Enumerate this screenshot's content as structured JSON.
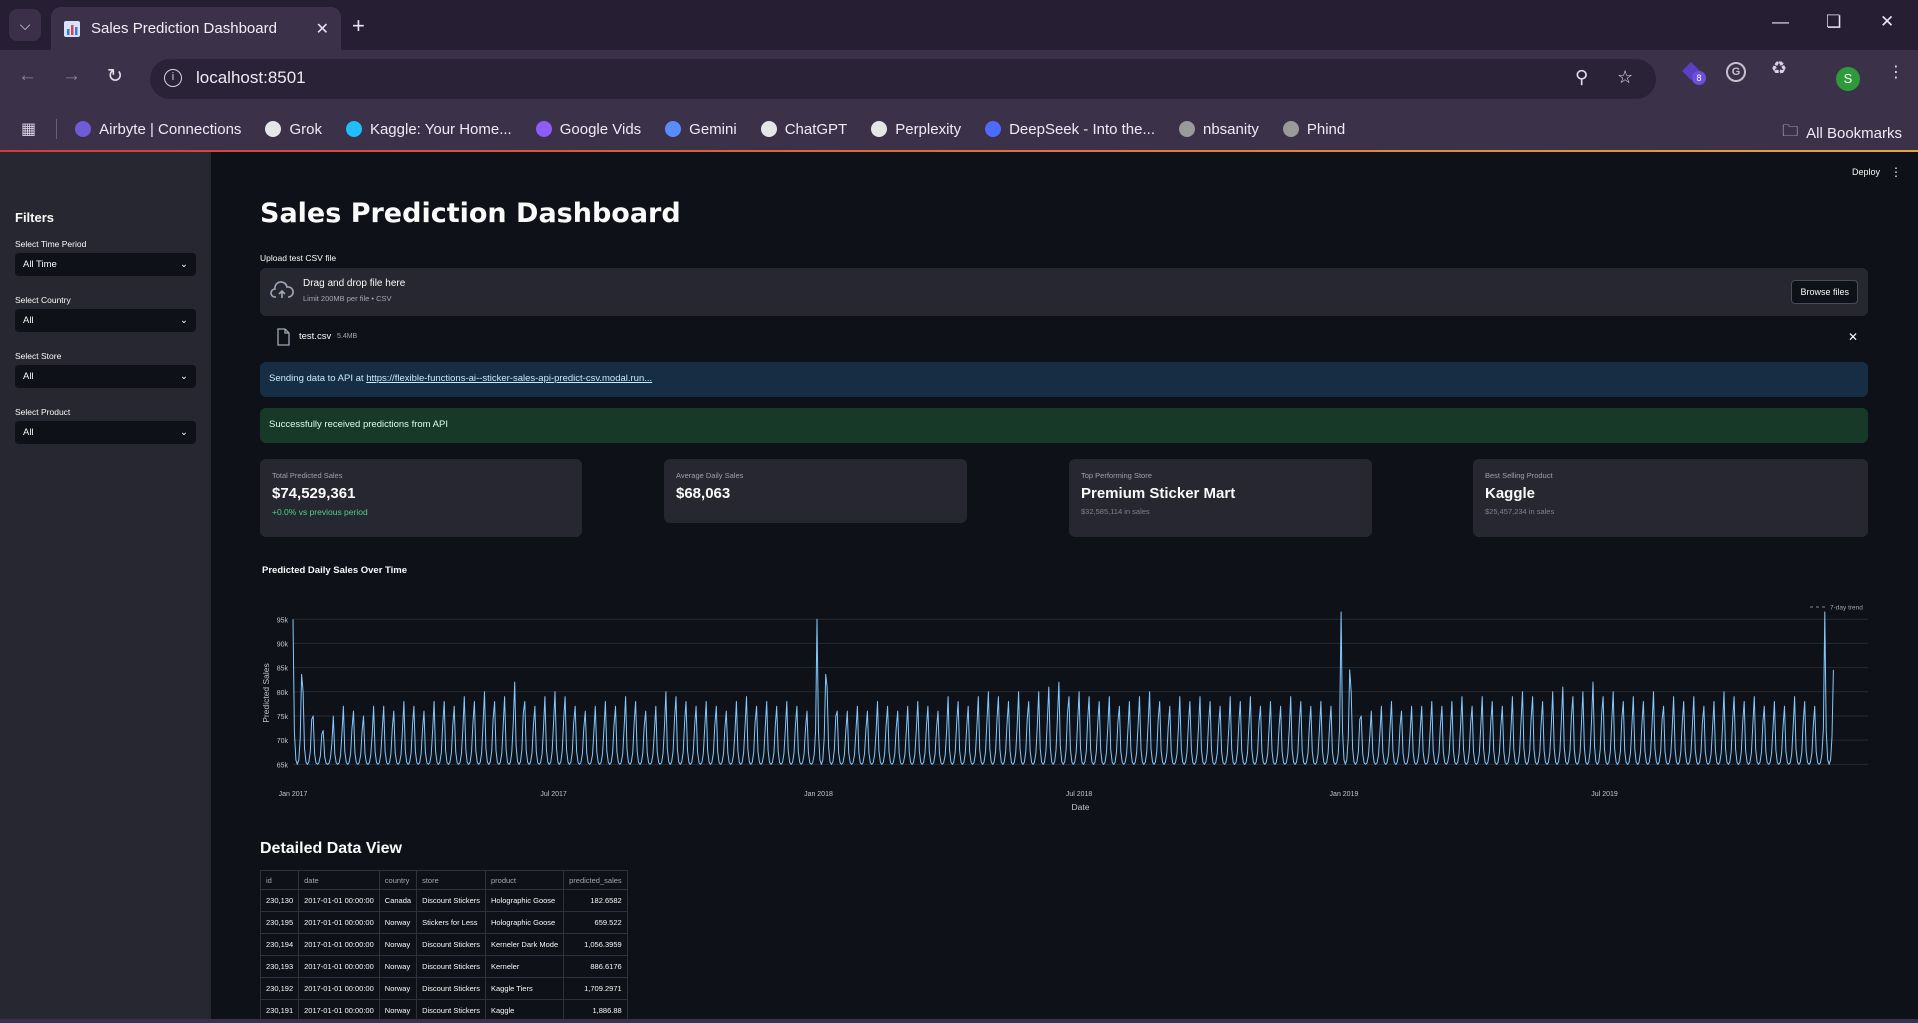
{
  "browser": {
    "tab_title": "Sales Prediction Dashboard",
    "url": "localhost:8501",
    "extension_badge": "8",
    "profile_initial": "S",
    "bookmarks": [
      {
        "label": "Airbyte | Connections",
        "color": "#6f5bd6"
      },
      {
        "label": "Grok",
        "color": "#e6e6e6"
      },
      {
        "label": "Kaggle: Your Home...",
        "color": "#20beff"
      },
      {
        "label": "Google Vids",
        "color": "#8f5cf7"
      },
      {
        "label": "Gemini",
        "color": "#5b8cff"
      },
      {
        "label": "ChatGPT",
        "color": "#e6e6e6"
      },
      {
        "label": "Perplexity",
        "color": "#e6e6e6"
      },
      {
        "label": "DeepSeek - Into the...",
        "color": "#4d6bfe"
      },
      {
        "label": "nbsanity",
        "color": "#9a9a9a"
      },
      {
        "label": "Phind",
        "color": "#9a9a9a"
      }
    ],
    "all_bookmarks": "All Bookmarks"
  },
  "app": {
    "deploy_label": "Deploy",
    "page_title": "Sales Prediction Dashboard",
    "sidebar": {
      "title": "Filters",
      "filters": [
        {
          "label": "Select Time Period",
          "value": "All Time"
        },
        {
          "label": "Select Country",
          "value": "All"
        },
        {
          "label": "Select Store",
          "value": "All"
        },
        {
          "label": "Select Product",
          "value": "All"
        }
      ]
    },
    "upload": {
      "label": "Upload test CSV file",
      "drop_text": "Drag and drop file here",
      "limit_text": "Limit 200MB per file • CSV",
      "browse_label": "Browse files",
      "file_name": "test.csv",
      "file_size": "5.4MB"
    },
    "info_alert": {
      "prefix": "Sending data to API at ",
      "link": "https://flexible-functions-ai--sticker-sales-api-predict-csv.modal.run..."
    },
    "success_alert": "Successfully received predictions from API",
    "metrics": [
      {
        "label": "Total Predicted Sales",
        "value": "$74,529,361",
        "sub": "+0.0% vs previous period",
        "delta_color": "#4fd27a"
      },
      {
        "label": "Average Daily Sales",
        "value": "$68,063",
        "sub": ""
      },
      {
        "label": "Top Performing Store",
        "value": "Premium Sticker Mart",
        "sub": "$32,585,114 in sales"
      },
      {
        "label": "Best Selling Product",
        "value": "Kaggle",
        "sub": "$25,457,234 in sales"
      }
    ],
    "table": {
      "title": "Detailed Data View",
      "columns": [
        "id",
        "date",
        "country",
        "store",
        "product",
        "predicted_sales"
      ],
      "rows": [
        [
          "230,130",
          "2017-01-01 00:00:00",
          "Canada",
          "Discount Stickers",
          "Holographic Goose",
          "182.6582"
        ],
        [
          "230,195",
          "2017-01-01 00:00:00",
          "Norway",
          "Stickers for Less",
          "Holographic Goose",
          "659.522"
        ],
        [
          "230,194",
          "2017-01-01 00:00:00",
          "Norway",
          "Discount Stickers",
          "Kerneler Dark Mode",
          "1,056.3959"
        ],
        [
          "230,193",
          "2017-01-01 00:00:00",
          "Norway",
          "Discount Stickers",
          "Kerneler",
          "886.6176"
        ],
        [
          "230,192",
          "2017-01-01 00:00:00",
          "Norway",
          "Discount Stickers",
          "Kaggle Tiers",
          "1,709.2971"
        ],
        [
          "230,191",
          "2017-01-01 00:00:00",
          "Norway",
          "Discount Stickers",
          "Kaggle",
          "1,886.88"
        ]
      ]
    }
  },
  "chart_data": {
    "type": "line",
    "title": "Predicted Daily Sales Over Time",
    "xlabel": "Date",
    "ylabel": "Predicted Sales",
    "legend": {
      "label": "7-day trend",
      "position": "top-right"
    },
    "ylim": [
      63000,
      96500
    ],
    "yticks": [
      65000,
      70000,
      75000,
      80000,
      85000,
      90000,
      95000
    ],
    "ytick_labels": [
      "65k",
      "70k",
      "75k",
      "80k",
      "85k",
      "90k",
      "95k"
    ],
    "xticks": [
      "2017-01-01",
      "2017-07-01",
      "2018-01-01",
      "2018-07-01",
      "2019-01-01",
      "2019-07-01"
    ],
    "xtick_labels": [
      "Jan 2017",
      "Jul 2017",
      "Jan 2018",
      "Jul 2018",
      "Jan 2019",
      "Jul 2019"
    ],
    "x_range": [
      "2017-01-01",
      "2019-12-31"
    ],
    "line_color": "#83c9ff",
    "series": [
      {
        "x_start": "2017-01-01",
        "x_step_days": 7,
        "weekly_peak": [
          95000,
          80000,
          75000,
          72000,
          75000,
          77000,
          76000,
          75000,
          77000,
          77000,
          76000,
          78000,
          77000,
          76000,
          78000,
          78000,
          77000,
          79000,
          78000,
          80000,
          78000,
          79000,
          82000,
          78000,
          77000,
          79000,
          80000,
          79000,
          77000,
          76000,
          77000,
          78000,
          77000,
          79000,
          78000,
          76000,
          77000,
          80000,
          79000,
          78000,
          77000,
          78000,
          77000,
          76000,
          78000,
          79000,
          77000,
          78000,
          77000,
          78000,
          77000,
          76000,
          95000,
          81000,
          76000,
          76000,
          77000,
          76000,
          78000,
          77000,
          76000,
          77000,
          78000,
          77000,
          76000,
          79000,
          78000,
          77000,
          79000,
          80000,
          79000,
          78000,
          80000,
          78000,
          80000,
          81000,
          82000,
          79000,
          80000,
          79000,
          78000,
          79000,
          77000,
          78000,
          79000,
          80000,
          78000,
          77000,
          79000,
          78000,
          79000,
          78000,
          77000,
          79000,
          78000,
          79000,
          77000,
          78000,
          77000,
          79000,
          78000,
          77000,
          78000,
          77000,
          96500,
          80000,
          75000,
          76000,
          77000,
          78000,
          76000,
          77000,
          77000,
          78000,
          77000,
          78000,
          79000,
          77000,
          79000,
          78000,
          77000,
          79000,
          80000,
          79000,
          78000,
          80000,
          81000,
          79000,
          80000,
          82000,
          79000,
          80000,
          78000,
          79000,
          78000,
          80000,
          77000,
          79000,
          78000,
          79000,
          77000,
          78000,
          80000,
          79000,
          78000,
          79000,
          77000,
          78000,
          77000,
          79000,
          78000,
          77000,
          96500
        ],
        "weekly_trough": 65000
      }
    ]
  }
}
